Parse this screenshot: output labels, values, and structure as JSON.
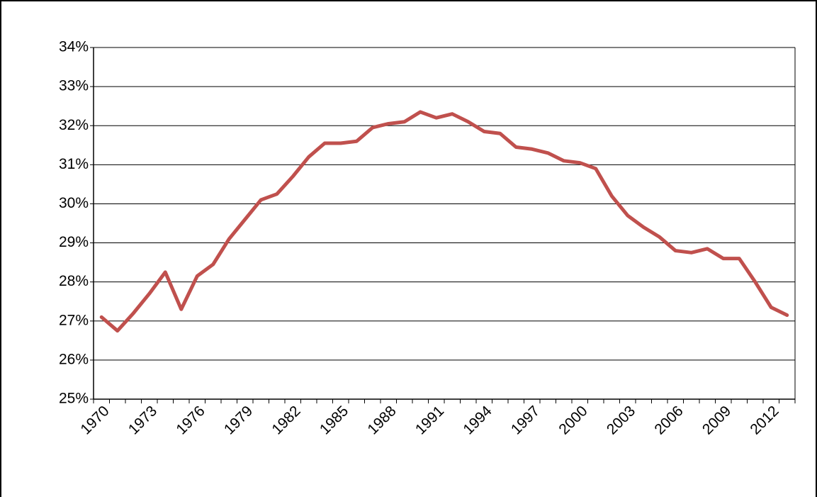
{
  "chart_data": {
    "type": "line",
    "categories": [
      "1970",
      null,
      null,
      "1973",
      null,
      null,
      "1976",
      null,
      null,
      "1979",
      null,
      null,
      "1982",
      null,
      null,
      "1985",
      null,
      null,
      "1988",
      null,
      null,
      "1991",
      null,
      null,
      "1994",
      null,
      null,
      "1997",
      null,
      null,
      "2000",
      null,
      null,
      "2003",
      null,
      null,
      "2006",
      null,
      null,
      "2009",
      null,
      null,
      "2012",
      null
    ],
    "series": [
      {
        "color": "#c0504d",
        "values": [
          27.1,
          26.75,
          27.2,
          27.7,
          28.25,
          27.3,
          28.15,
          28.45,
          29.1,
          29.6,
          30.1,
          30.25,
          30.7,
          31.2,
          31.55,
          31.55,
          31.6,
          31.95,
          32.05,
          32.1,
          32.35,
          32.2,
          32.3,
          32.1,
          31.85,
          31.8,
          31.45,
          31.4,
          31.3,
          31.1,
          31.05,
          30.9,
          30.2,
          29.7,
          29.4,
          29.15,
          28.8,
          28.75,
          28.85,
          28.6,
          28.6,
          28.0,
          27.35,
          27.15
        ]
      }
    ],
    "ylim": [
      25,
      34
    ],
    "yticks": [
      {
        "value": 25,
        "label": "25%"
      },
      {
        "value": 26,
        "label": "26%"
      },
      {
        "value": 27,
        "label": "27%"
      },
      {
        "value": 28,
        "label": "28%"
      },
      {
        "value": 29,
        "label": "29%"
      },
      {
        "value": 30,
        "label": "30%"
      },
      {
        "value": 31,
        "label": "31%"
      },
      {
        "value": 32,
        "label": "32%"
      },
      {
        "value": 33,
        "label": "33%"
      },
      {
        "value": 34,
        "label": "34%"
      }
    ],
    "grid": true
  }
}
